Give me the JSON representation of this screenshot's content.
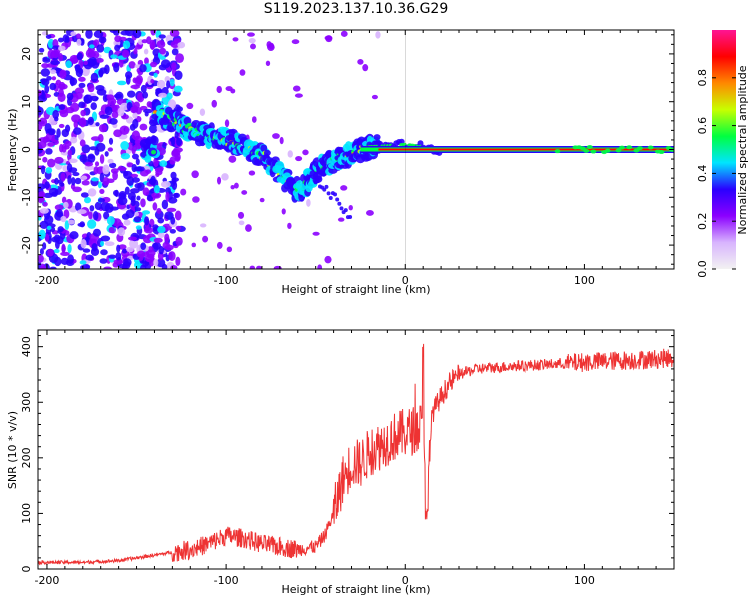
{
  "figure": {
    "title": "S119.2023.137.10.36.G29"
  },
  "chart_data": [
    {
      "type": "heatmap",
      "xlabel": "Height of straight line (km)",
      "ylabel": "Frequency (Hz)",
      "xlim": [
        -205,
        150
      ],
      "ylim": [
        -25,
        25
      ],
      "xticks": [
        -200,
        -100,
        0,
        100
      ],
      "yticks": [
        -20,
        -10,
        0,
        10,
        20
      ],
      "colorbar": {
        "label": "Normalized spectral amplitude",
        "range": [
          0,
          1
        ],
        "ticks": [
          0.0,
          0.2,
          0.4,
          0.6,
          0.8
        ],
        "colormap": [
          "#f2f2f2",
          "#d8b4fe",
          "#8b00ff",
          "#2a00ff",
          "#00e5ff",
          "#00ff40",
          "#c8ff00",
          "#ff8800",
          "#ff0000",
          "#ff1493"
        ]
      },
      "ridge": [
        {
          "x": -140,
          "y": 8
        },
        {
          "x": -120,
          "y": 4
        },
        {
          "x": -100,
          "y": 2
        },
        {
          "x": -80,
          "y": -1
        },
        {
          "x": -60,
          "y": -9
        },
        {
          "x": -45,
          "y": -3
        },
        {
          "x": -30,
          "y": -1
        },
        {
          "x": -20,
          "y": 0.5
        },
        {
          "x": 0,
          "y": 1
        },
        {
          "x": 20,
          "y": 0
        },
        {
          "x": 90,
          "y": 0
        },
        {
          "x": 150,
          "y": 0
        }
      ],
      "grid": false
    },
    {
      "type": "line",
      "xlabel": "Height of straight line (km)",
      "ylabel": "SNR (10 * v/v)",
      "xlim": [
        -205,
        150
      ],
      "ylim": [
        0,
        430
      ],
      "xticks": [
        -200,
        -100,
        0,
        100
      ],
      "yticks": [
        0,
        100,
        200,
        300,
        400
      ],
      "color": "#ee3333",
      "series": [
        {
          "x": [
            -205,
            -180,
            -160,
            -140,
            -130,
            -120,
            -110,
            -100,
            -90,
            -80,
            -70,
            -60,
            -50,
            -45,
            -40,
            -35,
            -30,
            -25,
            -20,
            -15,
            -10,
            -5,
            0,
            5,
            10,
            12,
            15,
            20,
            25,
            30,
            40,
            60,
            80,
            90,
            100,
            120,
            140,
            150
          ],
          "y": [
            12,
            12,
            15,
            25,
            30,
            35,
            45,
            60,
            55,
            45,
            40,
            35,
            40,
            60,
            100,
            160,
            190,
            190,
            210,
            220,
            230,
            240,
            245,
            250,
            260,
            120,
            280,
            310,
            335,
            350,
            360,
            365,
            368,
            370,
            372,
            375,
            378,
            380
          ]
        }
      ],
      "grid": false
    }
  ]
}
